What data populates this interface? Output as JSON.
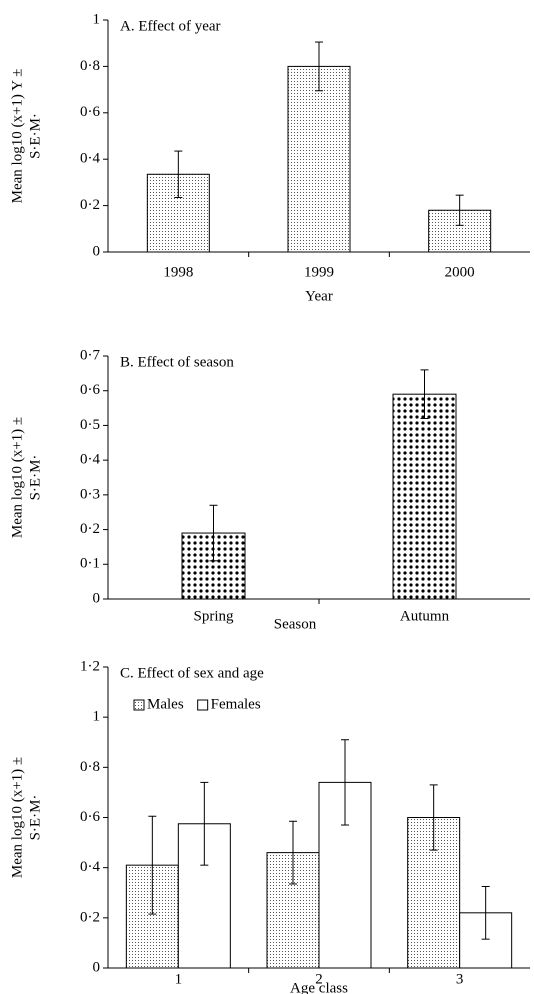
{
  "chart_data": [
    {
      "type": "bar",
      "title": "A. Effect of year",
      "xlabel": "Year",
      "ylabel": [
        "Mean log10 (x+1) Y ±",
        "S·E·M·"
      ],
      "categories": [
        "1998",
        "1999",
        "2000"
      ],
      "values": [
        0.335,
        0.8,
        0.18
      ],
      "errors": [
        0.1,
        0.105,
        0.065
      ],
      "ylim": [
        0,
        1
      ],
      "yticks": [
        0,
        {
          "value": 0.2,
          "label": "0·2"
        },
        {
          "value": 0.4,
          "label": "0·4"
        },
        {
          "value": 0.6,
          "label": "0·6"
        },
        {
          "value": 0.8,
          "label": "0·8"
        },
        1
      ]
    },
    {
      "type": "bar",
      "title": "B. Effect of season",
      "xlabel": "Season",
      "ylabel": [
        "Mean log10 (x+1) ±",
        "S·E·M·"
      ],
      "categories": [
        "Spring",
        "Autumn"
      ],
      "values": [
        0.19,
        0.59
      ],
      "errors": [
        0.08,
        0.07
      ],
      "ylim": [
        0,
        0.7
      ],
      "yticks": [
        0,
        {
          "value": 0.1,
          "label": "0·1"
        },
        {
          "value": 0.2,
          "label": "0·2"
        },
        {
          "value": 0.3,
          "label": "0·3"
        },
        {
          "value": 0.4,
          "label": "0·4"
        },
        {
          "value": 0.5,
          "label": "0·5"
        },
        {
          "value": 0.6,
          "label": "0·6"
        },
        {
          "value": 0.7,
          "label": "0·7"
        }
      ]
    },
    {
      "type": "grouped-bar",
      "title": "C. Effect of sex and age",
      "xlabel": "Age class",
      "ylabel": [
        "Mean log10 (x+1) ±",
        "S·E·M·"
      ],
      "categories": [
        "1",
        "2",
        "3"
      ],
      "series": [
        {
          "name": "Males",
          "values": [
            0.41,
            0.46,
            0.6
          ],
          "errors": [
            0.195,
            0.125,
            0.13
          ]
        },
        {
          "name": "Females",
          "values": [
            0.575,
            0.74,
            0.22
          ],
          "errors": [
            0.165,
            0.17,
            0.105
          ]
        }
      ],
      "ylim": [
        0,
        1.2
      ],
      "yticks": [
        0,
        {
          "value": 0.2,
          "label": "0·2"
        },
        {
          "value": 0.4,
          "label": "0·4"
        },
        {
          "value": 0.6,
          "label": "0·6"
        },
        {
          "value": 0.8,
          "label": "0·8"
        },
        1,
        {
          "value": 1.2,
          "label": "1·2"
        }
      ]
    }
  ]
}
